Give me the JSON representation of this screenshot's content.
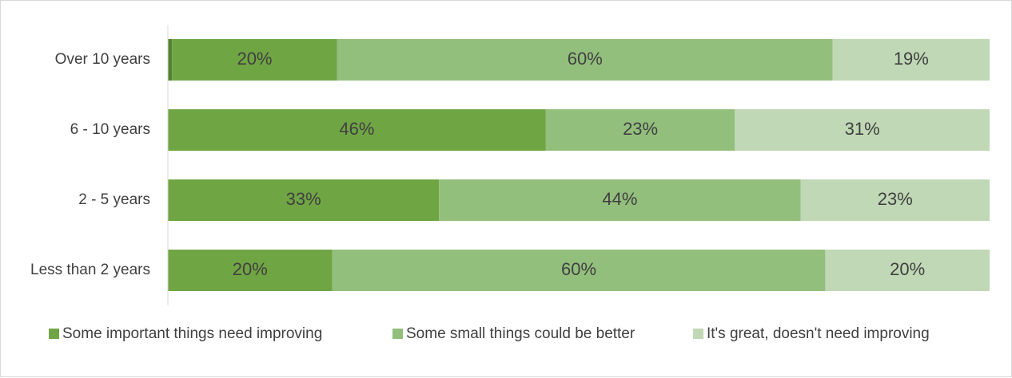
{
  "chart_data": {
    "type": "bar",
    "orientation": "horizontal",
    "stacked": true,
    "percent": true,
    "categories": [
      "Over 10 years",
      "6 - 10 years",
      "2 - 5 years",
      "Less than 2 years"
    ],
    "series": [
      {
        "name": "",
        "values": [
          0.5,
          0,
          0,
          0
        ],
        "labels": [
          "",
          "",
          "",
          ""
        ],
        "color": "#548235"
      },
      {
        "name": "Some important things need improving",
        "values": [
          20,
          46,
          33,
          20
        ],
        "labels": [
          "20%",
          "46%",
          "33%",
          "20%"
        ],
        "color": "#70a544"
      },
      {
        "name": "Some small things could be better",
        "values": [
          60,
          23,
          44,
          60
        ],
        "labels": [
          "60%",
          "23%",
          "44%",
          "60%"
        ],
        "color": "#93bf7d"
      },
      {
        "name": "It's great, doesn't need improving",
        "values": [
          19,
          31,
          23,
          20
        ],
        "labels": [
          "19%",
          "31%",
          "23%",
          "20%"
        ],
        "color": "#c0d8b5"
      }
    ],
    "xlim": [
      0,
      100
    ],
    "grid": false,
    "legend": "bottom",
    "title": "",
    "xlabel": "",
    "ylabel": ""
  }
}
